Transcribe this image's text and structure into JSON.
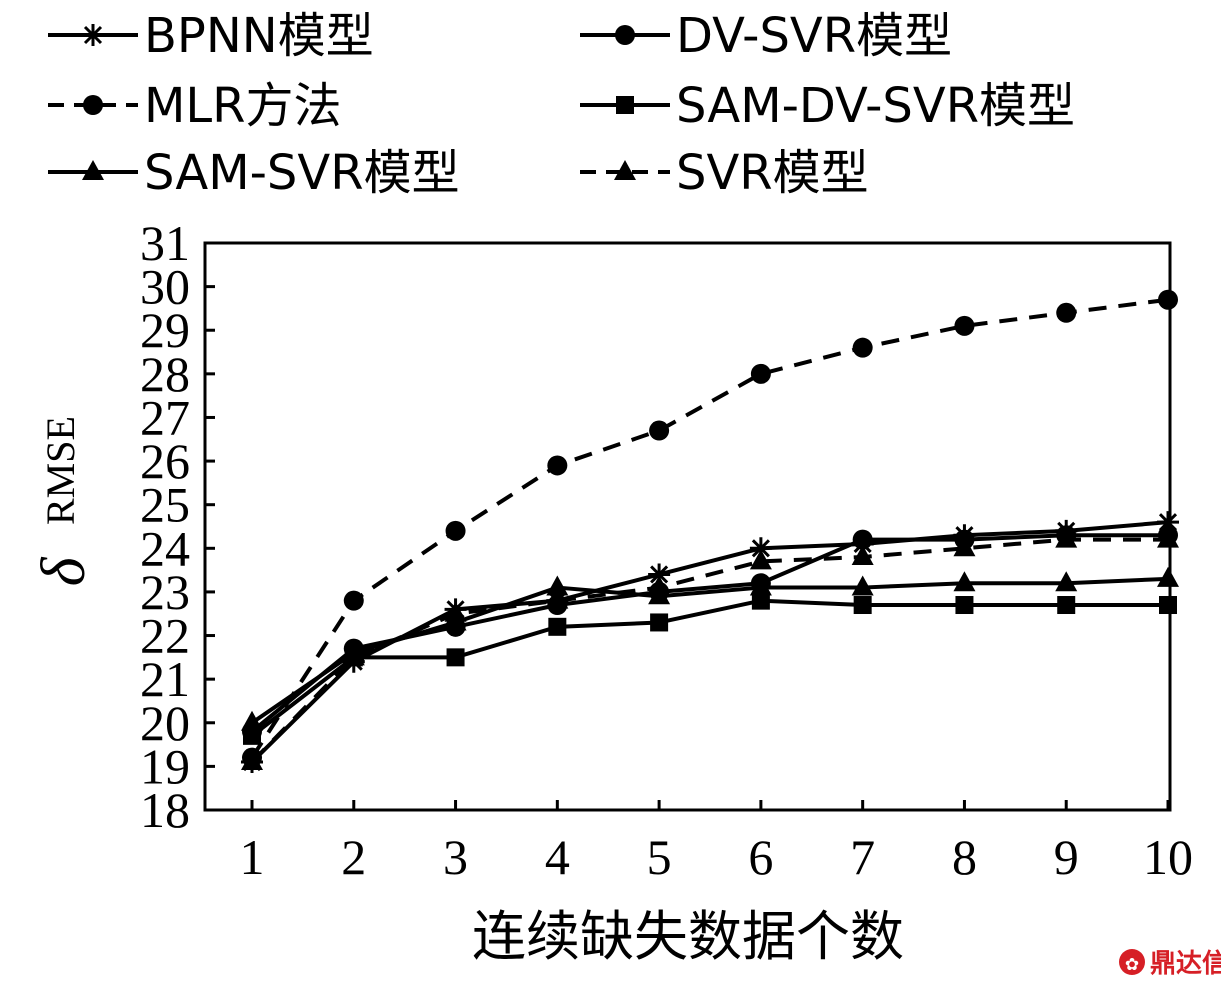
{
  "chart_data": {
    "type": "line",
    "x": [
      1,
      2,
      3,
      4,
      5,
      6,
      7,
      8,
      9,
      10
    ],
    "xlabel": "连续缺失数据个数",
    "ylabel": "δ",
    "ylabel_sub": "RMSE",
    "xlim": [
      1,
      10
    ],
    "ylim": [
      18,
      31
    ],
    "yticks": [
      18,
      19,
      20,
      21,
      22,
      23,
      24,
      25,
      26,
      27,
      28,
      29,
      30,
      31
    ],
    "grid": false,
    "legend_position": "top",
    "series": [
      {
        "name": "BPNN模型",
        "marker": "star",
        "dash": "solid",
        "values": [
          19.1,
          21.4,
          22.6,
          22.8,
          23.4,
          24.0,
          24.1,
          24.3,
          24.4,
          24.6
        ]
      },
      {
        "name": "DV-SVR模型",
        "marker": "circle",
        "dash": "solid",
        "values": [
          19.8,
          21.7,
          22.2,
          22.7,
          23.0,
          23.2,
          24.2,
          24.2,
          24.3,
          24.3
        ]
      },
      {
        "name": "MLR方法",
        "marker": "circle",
        "dash": "dashed",
        "values": [
          19.2,
          22.8,
          24.4,
          25.9,
          26.7,
          28.0,
          28.6,
          29.1,
          29.4,
          29.7
        ]
      },
      {
        "name": "SAM-DV-SVR模型",
        "marker": "square",
        "dash": "solid",
        "values": [
          19.7,
          21.5,
          21.5,
          22.2,
          22.3,
          22.8,
          22.7,
          22.7,
          22.7,
          22.7
        ]
      },
      {
        "name": "SAM-SVR模型",
        "marker": "triangle",
        "dash": "solid",
        "values": [
          20.0,
          21.6,
          22.3,
          23.1,
          22.9,
          23.1,
          23.1,
          23.2,
          23.2,
          23.3
        ]
      },
      {
        "name": "SVR模型",
        "marker": "triangle",
        "dash": "dashed",
        "values": [
          19.1,
          21.5,
          22.5,
          22.8,
          23.1,
          23.7,
          23.8,
          24.0,
          24.2,
          24.2
        ]
      }
    ]
  },
  "watermark": {
    "text": "鼎达信",
    "icon": "logo-icon",
    "color": "#d61f26"
  }
}
